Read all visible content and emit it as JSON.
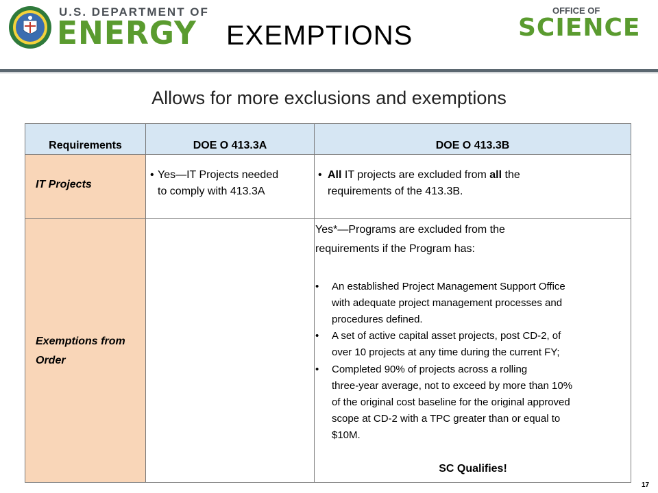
{
  "header": {
    "doe_small": "U.S. DEPARTMENT OF",
    "doe_big": "ENERGY",
    "title": "EXEMPTIONS",
    "office_of": "OFFICE OF",
    "science": "SCIENCE"
  },
  "subtitle": "Allows for more exclusions and exemptions",
  "table": {
    "headers": [
      "Requirements",
      "DOE O 413.3A",
      "DOE O 413.3B"
    ],
    "row1": {
      "label": "IT Projects",
      "col_a_line1": "Yes—IT Projects needed",
      "col_a_line2": "to comply with 413.3A",
      "col_b_all1": "All",
      "col_b_mid": " IT projects are excluded from ",
      "col_b_all2": "all",
      "col_b_end": " the",
      "col_b_line2": "requirements of the 413.3B."
    },
    "row2": {
      "label_line1": "Exemptions from",
      "label_line2": "Order",
      "intro_line1": "Yes*—Programs are excluded from the",
      "intro_line2": "requirements if the Program has:",
      "bullets": [
        [
          "An established Project Management Support Office",
          "with adequate project management processes and",
          "procedures defined."
        ],
        [
          "A set of active capital asset projects, post CD-2, of",
          "over 10 projects at any time during the current FY;"
        ],
        [
          "Completed 90% of projects across a rolling",
          "three-year average, not to exceed by more than 10%",
          "of the original cost baseline for the original approved",
          "scope at CD-2 with a TPC greater than or equal to",
          "$10M."
        ]
      ],
      "closing": "SC Qualifies!"
    }
  },
  "page_number": "17",
  "colors": {
    "green": "#5a9b2f",
    "header_blue": "#d6e6f3",
    "peach": "#f9d6b8"
  }
}
